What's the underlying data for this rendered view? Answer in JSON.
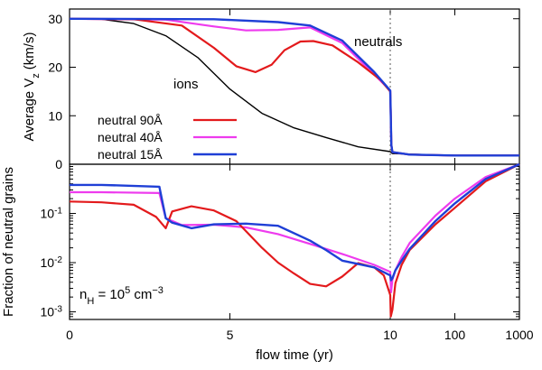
{
  "chart_data": [
    {
      "panel": "top",
      "type": "line",
      "ylabel_main": "Average V",
      "ylabel_sub": "z",
      "ylabel_unit": "(km/s)",
      "ylim": [
        0,
        32
      ],
      "yticks": [
        0,
        10,
        20,
        30
      ],
      "annotations": {
        "ions": "ions",
        "neutrals": "neutrals"
      },
      "series": [
        {
          "name": "neutral 90Å",
          "color": "#e31a1c",
          "width": 2.2,
          "points": [
            [
              0,
              30
            ],
            [
              2,
              29.9
            ],
            [
              3.5,
              28.6
            ],
            [
              4.5,
              24
            ],
            [
              5.2,
              20.2
            ],
            [
              5.8,
              19
            ],
            [
              6.3,
              20.5
            ],
            [
              6.7,
              23.5
            ],
            [
              7.2,
              25.3
            ],
            [
              7.6,
              25.4
            ],
            [
              8.2,
              24.5
            ],
            [
              9,
              21
            ],
            [
              9.7,
              17.4
            ],
            [
              10,
              15
            ],
            [
              10.15,
              11
            ],
            [
              10.4,
              4
            ],
            [
              10.8,
              2.5
            ],
            [
              20,
              2
            ],
            [
              100,
              1.8
            ],
            [
              1000,
              1.8
            ]
          ]
        },
        {
          "name": "neutral 40Å",
          "color": "#ee3bee",
          "width": 2.2,
          "points": [
            [
              0,
              30
            ],
            [
              3,
              29.8
            ],
            [
              4.5,
              28.4
            ],
            [
              5.5,
              27.6
            ],
            [
              6.5,
              27.7
            ],
            [
              7.5,
              28.2
            ],
            [
              8.5,
              25
            ],
            [
              9.5,
              18.5
            ],
            [
              10,
              15.2
            ],
            [
              10.15,
              11
            ],
            [
              10.4,
              4
            ],
            [
              10.8,
              2.5
            ],
            [
              20,
              2
            ],
            [
              100,
              1.8
            ],
            [
              1000,
              1.8
            ]
          ]
        },
        {
          "name": "neutral 15Å",
          "color": "#1f3fd6",
          "width": 2.4,
          "points": [
            [
              0,
              30
            ],
            [
              4.5,
              29.9
            ],
            [
              6.5,
              29.3
            ],
            [
              7.5,
              28.6
            ],
            [
              8.5,
              25.5
            ],
            [
              9.5,
              19
            ],
            [
              10,
              15.2
            ],
            [
              10.15,
              11
            ],
            [
              10.4,
              4
            ],
            [
              10.8,
              2.5
            ],
            [
              20,
              2
            ],
            [
              100,
              1.8
            ],
            [
              1000,
              1.8
            ]
          ]
        },
        {
          "name": "ions",
          "color": "#000000",
          "width": 1.4,
          "points": [
            [
              0,
              30
            ],
            [
              1,
              29.9
            ],
            [
              2,
              29
            ],
            [
              3,
              26.5
            ],
            [
              4,
              22
            ],
            [
              5,
              15.5
            ],
            [
              6,
              10.5
            ],
            [
              7,
              7.5
            ],
            [
              8,
              5.5
            ],
            [
              9,
              3.6
            ],
            [
              10,
              2.6
            ],
            [
              10.8,
              2.2
            ],
            [
              100,
              1.8
            ],
            [
              1000,
              1.8
            ]
          ]
        }
      ]
    },
    {
      "panel": "bottom",
      "type": "line",
      "yscale": "log",
      "ylabel": "Fraction of neutral grains",
      "ylim": [
        0.0007,
        1.0
      ],
      "yticks": [
        {
          "value": 0.001,
          "base": "10",
          "exp": "-3"
        },
        {
          "value": 0.01,
          "base": "10",
          "exp": "-2"
        },
        {
          "value": 0.1,
          "base": "10",
          "exp": "-1"
        }
      ],
      "annotation": {
        "base": "n",
        "sub": "H",
        "mid": " = 10",
        "sup1": "5",
        "unit": " cm",
        "sup2": "−3"
      },
      "series": [
        {
          "name": "neutral 90Å",
          "color": "#e31a1c",
          "width": 2.2,
          "points": [
            [
              0,
              0.175
            ],
            [
              1,
              0.168
            ],
            [
              2,
              0.15
            ],
            [
              2.7,
              0.085
            ],
            [
              3,
              0.05
            ],
            [
              3.2,
              0.11
            ],
            [
              3.8,
              0.14
            ],
            [
              4.5,
              0.115
            ],
            [
              5.2,
              0.07
            ],
            [
              6,
              0.02
            ],
            [
              6.5,
              0.01
            ],
            [
              7,
              0.006
            ],
            [
              7.5,
              0.0037
            ],
            [
              8,
              0.0033
            ],
            [
              8.5,
              0.0052
            ],
            [
              9,
              0.0098
            ],
            [
              9.5,
              0.008
            ],
            [
              9.8,
              0.0055
            ],
            [
              10,
              0.0022
            ],
            [
              10.2,
              0.0008
            ],
            [
              10.8,
              0.0011
            ],
            [
              12,
              0.0038
            ],
            [
              15,
              0.009
            ],
            [
              20,
              0.018
            ],
            [
              50,
              0.06
            ],
            [
              100,
              0.13
            ],
            [
              300,
              0.45
            ],
            [
              1000,
              1.0
            ]
          ]
        },
        {
          "name": "neutral 40Å",
          "color": "#ee3bee",
          "width": 2.2,
          "points": [
            [
              0,
              0.27
            ],
            [
              1,
              0.27
            ],
            [
              2.8,
              0.26
            ],
            [
              3,
              0.08
            ],
            [
              3.5,
              0.058
            ],
            [
              4.5,
              0.059
            ],
            [
              5.5,
              0.052
            ],
            [
              6.5,
              0.038
            ],
            [
              7.5,
              0.024
            ],
            [
              8.5,
              0.015
            ],
            [
              9.5,
              0.009
            ],
            [
              10,
              0.0065
            ],
            [
              10.3,
              0.0025
            ],
            [
              10.8,
              0.0045
            ],
            [
              12,
              0.007
            ],
            [
              15,
              0.013
            ],
            [
              20,
              0.025
            ],
            [
              50,
              0.09
            ],
            [
              100,
              0.2
            ],
            [
              300,
              0.55
            ],
            [
              1000,
              1.0
            ]
          ]
        },
        {
          "name": "neutral 15Å",
          "color": "#1f3fd6",
          "width": 2.4,
          "points": [
            [
              0,
              0.38
            ],
            [
              1,
              0.38
            ],
            [
              2.8,
              0.35
            ],
            [
              3,
              0.08
            ],
            [
              3.2,
              0.065
            ],
            [
              3.8,
              0.05
            ],
            [
              4.5,
              0.06
            ],
            [
              5.5,
              0.062
            ],
            [
              6.5,
              0.056
            ],
            [
              7.5,
              0.028
            ],
            [
              8,
              0.018
            ],
            [
              8.5,
              0.011
            ],
            [
              9.5,
              0.008
            ],
            [
              10,
              0.0055
            ],
            [
              10.3,
              0.0044
            ],
            [
              10.8,
              0.0048
            ],
            [
              12,
              0.007
            ],
            [
              15,
              0.011
            ],
            [
              20,
              0.019
            ],
            [
              50,
              0.07
            ],
            [
              100,
              0.16
            ],
            [
              300,
              0.5
            ],
            [
              1000,
              1.0
            ]
          ]
        }
      ]
    }
  ],
  "xaxis": {
    "label": "flow time (yr)",
    "note": "piecewise: linear 0–10 yr, logarithmic 10–1000 yr",
    "ticks": [
      {
        "value": 0,
        "label": "0"
      },
      {
        "value": 5,
        "label": "5"
      },
      {
        "value": 10,
        "label": "10"
      },
      {
        "value": 100,
        "label": "100"
      },
      {
        "value": 1000,
        "label": "1000"
      }
    ],
    "dashed_line_at": 10
  },
  "legend": {
    "position": "top-panel lower-left",
    "entries": [
      {
        "label": "neutral 90Å",
        "color": "#e31a1c"
      },
      {
        "label": "neutral 40Å",
        "color": "#ee3bee"
      },
      {
        "label": "neutral 15Å",
        "color": "#1f3fd6"
      }
    ]
  }
}
